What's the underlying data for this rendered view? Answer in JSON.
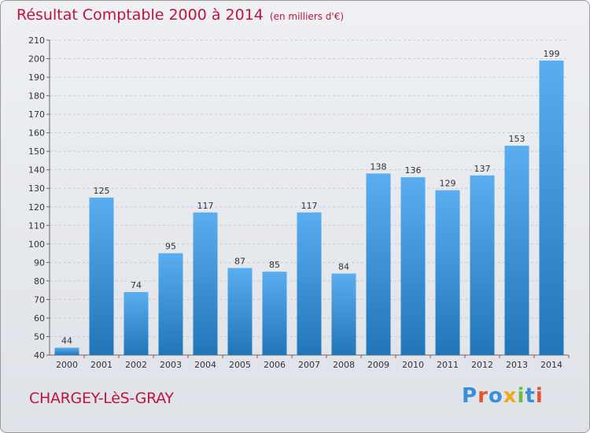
{
  "header": {
    "title": "Résultat Comptable 2000 à 2014",
    "subtitle": "(en milliers d'€)"
  },
  "footer": {
    "place": "CHARGEY-LèS-GRAY",
    "logo": "Proxiti",
    "logo_colors": [
      "#3b8fd6",
      "#e8532b",
      "#3b8fd6",
      "#f2a81d",
      "#6bbf3b",
      "#3b8fd6",
      "#e8532b"
    ]
  },
  "colors": {
    "title": "#c0143c",
    "bar_top": "#5aaef0",
    "bar_bottom": "#2176b8",
    "grid": "#c8cbd2"
  },
  "chart_data": {
    "type": "bar",
    "title": "Résultat Comptable 2000 à 2014",
    "subtitle": "(en milliers d'€)",
    "categories": [
      "2000",
      "2001",
      "2002",
      "2003",
      "2004",
      "2005",
      "2006",
      "2007",
      "2008",
      "2009",
      "2010",
      "2011",
      "2012",
      "2013",
      "2014"
    ],
    "values": [
      44,
      125,
      74,
      95,
      117,
      87,
      85,
      117,
      84,
      138,
      136,
      129,
      137,
      153,
      199
    ],
    "ylim": [
      40,
      210
    ],
    "yticks": [
      40,
      50,
      60,
      70,
      80,
      90,
      100,
      110,
      120,
      130,
      140,
      150,
      160,
      170,
      180,
      190,
      200,
      210
    ],
    "grid": true,
    "data_labels": true
  }
}
